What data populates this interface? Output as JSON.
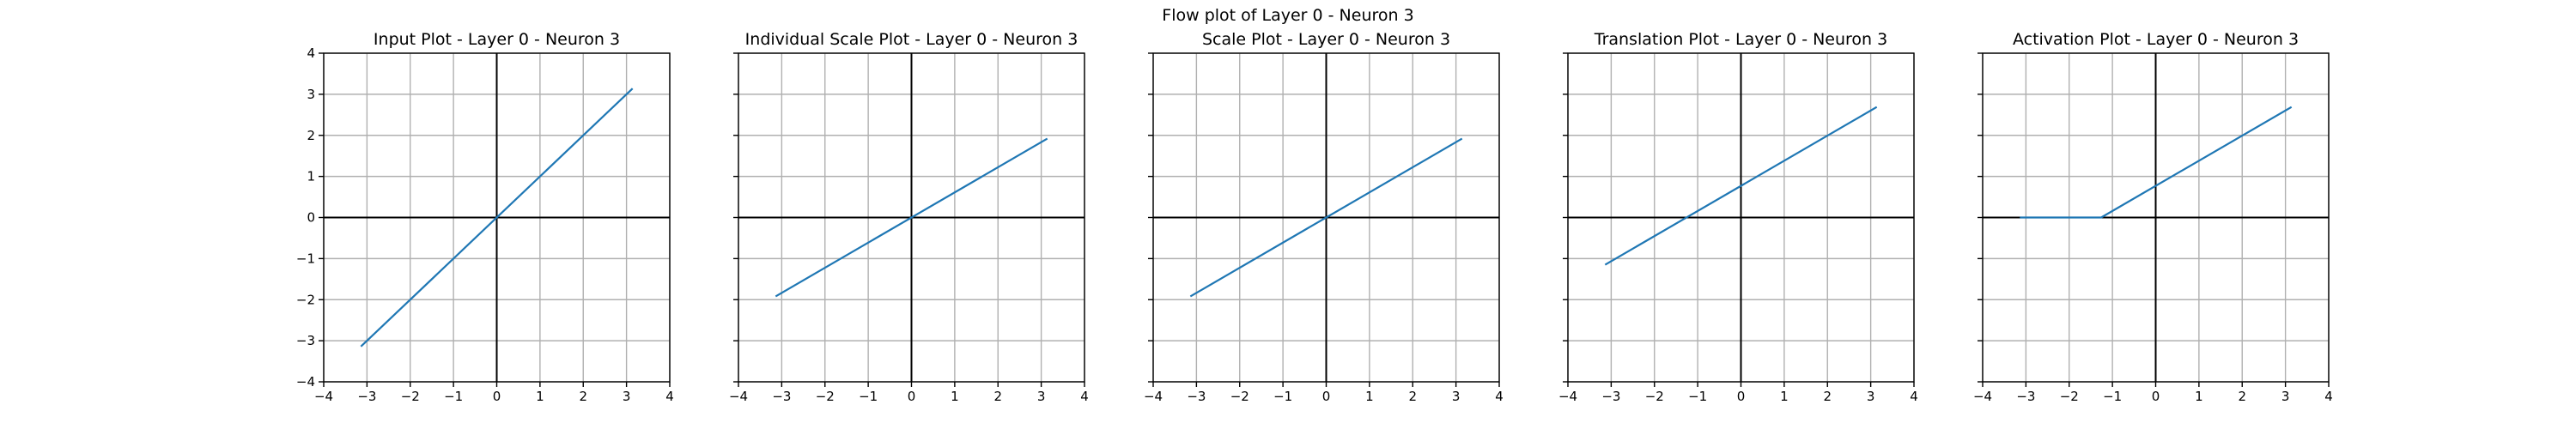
{
  "figure": {
    "suptitle": "Flow plot of Layer 0 - Neuron 3"
  },
  "style": {
    "line_color": "#1f77b4",
    "grid_color": "#b0b0b0",
    "axis_line_color": "#000000",
    "frame_color": "#000000"
  },
  "chart_data": [
    {
      "type": "line",
      "title": "Input Plot - Layer 0 - Neuron 3",
      "xlim": [
        -4,
        4
      ],
      "ylim": [
        -4,
        4
      ],
      "xticks": [
        -4,
        -3,
        -2,
        -1,
        0,
        1,
        2,
        3,
        4
      ],
      "yticks": [
        -4,
        -3,
        -2,
        -1,
        0,
        1,
        2,
        3,
        4
      ],
      "show_yticklabels": true,
      "grid": true,
      "series": [
        {
          "x": [
            -3.14,
            3.14
          ],
          "y": [
            -3.14,
            3.14
          ]
        }
      ]
    },
    {
      "type": "line",
      "title": "Individual Scale Plot - Layer 0 - Neuron 3",
      "xlim": [
        -4,
        4
      ],
      "ylim": [
        -4,
        4
      ],
      "xticks": [
        -4,
        -3,
        -2,
        -1,
        0,
        1,
        2,
        3,
        4
      ],
      "yticks": [
        -4,
        -3,
        -2,
        -1,
        0,
        1,
        2,
        3,
        4
      ],
      "show_yticklabels": false,
      "grid": true,
      "series": [
        {
          "x": [
            -3.14,
            3.14
          ],
          "y": [
            -1.92,
            1.92
          ]
        }
      ]
    },
    {
      "type": "line",
      "title": "Scale Plot - Layer 0 - Neuron 3",
      "xlim": [
        -4,
        4
      ],
      "ylim": [
        -4,
        4
      ],
      "xticks": [
        -4,
        -3,
        -2,
        -1,
        0,
        1,
        2,
        3,
        4
      ],
      "yticks": [
        -4,
        -3,
        -2,
        -1,
        0,
        1,
        2,
        3,
        4
      ],
      "show_yticklabels": false,
      "grid": true,
      "series": [
        {
          "x": [
            -3.14,
            3.14
          ],
          "y": [
            -1.92,
            1.92
          ]
        }
      ]
    },
    {
      "type": "line",
      "title": "Translation Plot - Layer 0 - Neuron 3",
      "xlim": [
        -4,
        4
      ],
      "ylim": [
        -4,
        4
      ],
      "xticks": [
        -4,
        -3,
        -2,
        -1,
        0,
        1,
        2,
        3,
        4
      ],
      "yticks": [
        -4,
        -3,
        -2,
        -1,
        0,
        1,
        2,
        3,
        4
      ],
      "show_yticklabels": false,
      "grid": true,
      "series": [
        {
          "x": [
            -3.14,
            3.14
          ],
          "y": [
            -1.15,
            2.69
          ]
        }
      ]
    },
    {
      "type": "line",
      "title": "Activation Plot - Layer 0 - Neuron 3",
      "xlim": [
        -4,
        4
      ],
      "ylim": [
        -4,
        4
      ],
      "xticks": [
        -4,
        -3,
        -2,
        -1,
        0,
        1,
        2,
        3,
        4
      ],
      "yticks": [
        -4,
        -3,
        -2,
        -1,
        0,
        1,
        2,
        3,
        4
      ],
      "show_yticklabels": false,
      "grid": true,
      "series": [
        {
          "x": [
            -3.14,
            -1.26,
            3.14
          ],
          "y": [
            0,
            0,
            2.69
          ]
        }
      ]
    }
  ]
}
